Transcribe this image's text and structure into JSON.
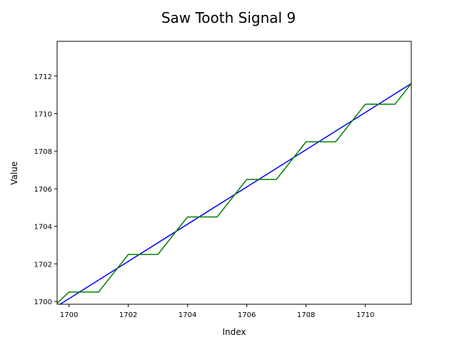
{
  "chart_data": {
    "type": "line",
    "title": "Saw Tooth Signal 9",
    "xlabel": "Index",
    "ylabel": "Value",
    "xlim": [
      1699.6,
      1711.55
    ],
    "ylim": [
      1699.85,
      1713.85
    ],
    "xticks": [
      1700,
      1702,
      1704,
      1706,
      1708,
      1710
    ],
    "yticks": [
      1700,
      1702,
      1704,
      1706,
      1708,
      1710,
      1712
    ],
    "grid": false,
    "legend": "none",
    "series": [
      {
        "color": "#0000ff",
        "x": [
          1699.6,
          1711.55
        ],
        "y": [
          1699.75,
          1711.6
        ]
      },
      {
        "color": "#008000",
        "x": [
          1699.6,
          1700,
          1701,
          1702,
          1703,
          1704,
          1705,
          1706,
          1707,
          1708,
          1709,
          1710,
          1711,
          1711.55
        ],
        "y": [
          1699.9,
          1700.5,
          1700.5,
          1702.5,
          1702.5,
          1704.5,
          1704.5,
          1706.5,
          1706.5,
          1708.5,
          1708.5,
          1710.5,
          1710.5,
          1711.6
        ]
      }
    ]
  }
}
